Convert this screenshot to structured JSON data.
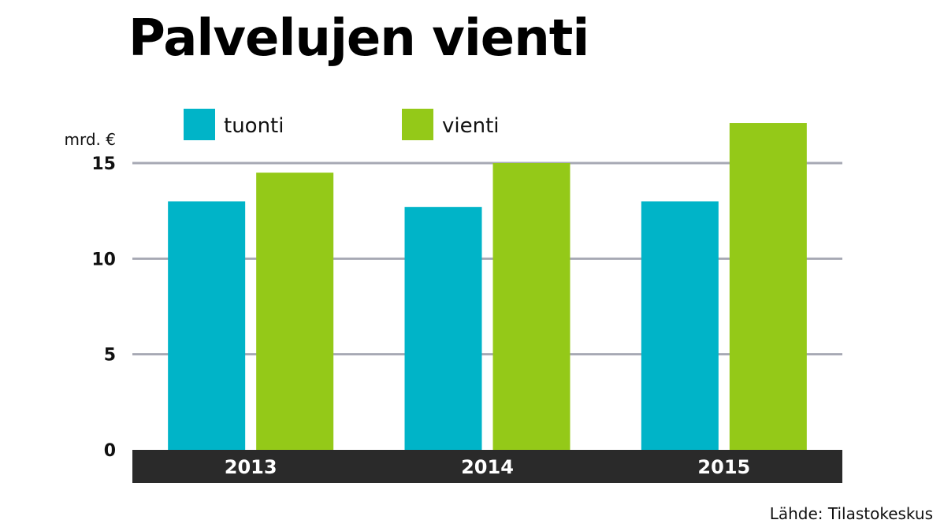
{
  "colors": {
    "tuonti": "#00b4c8",
    "vienti": "#94c918",
    "grid": "#a7a9b4",
    "axis_band": "#2a2a2a"
  },
  "chart_data": {
    "type": "bar",
    "title": "Palvelujen vienti",
    "unit_label": "mrd. €",
    "categories": [
      "2013",
      "2014",
      "2015"
    ],
    "series": [
      {
        "name": "tuonti",
        "values": [
          13.0,
          12.7,
          13.0
        ]
      },
      {
        "name": "vienti",
        "values": [
          14.5,
          15.0,
          17.1
        ]
      }
    ],
    "yticks": [
      0,
      5,
      10,
      15
    ],
    "ylim": [
      0,
      17.5
    ],
    "grid": true,
    "legend_position": "top",
    "source": "Lähde: Tilastokeskus"
  }
}
